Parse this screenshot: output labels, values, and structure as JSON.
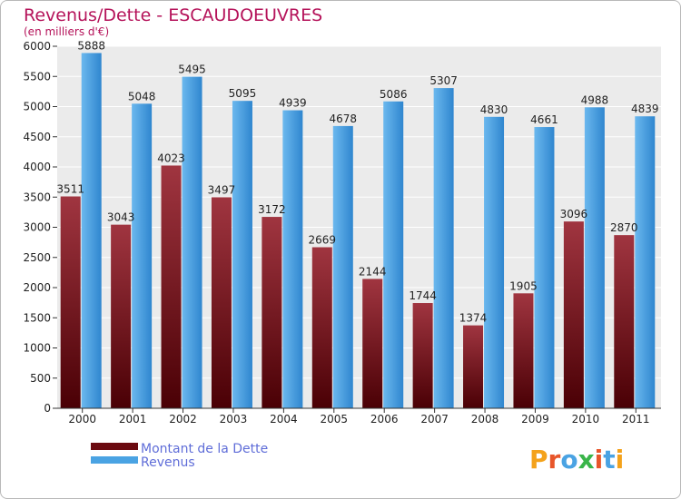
{
  "chart_data": {
    "type": "bar",
    "title": "Revenus/Dette - ESCAUDOEUVRES",
    "subtitle": "(en milliers d'€)",
    "categories": [
      "2000",
      "2001",
      "2002",
      "2003",
      "2004",
      "2005",
      "2006",
      "2007",
      "2008",
      "2009",
      "2010",
      "2011"
    ],
    "series": [
      {
        "name": "Montant de la Dette",
        "color": "#7a1a22",
        "values": [
          3511,
          3043,
          4023,
          3497,
          3172,
          2669,
          2144,
          1744,
          1374,
          1905,
          3096,
          2870
        ]
      },
      {
        "name": "Revenus",
        "color": "#4aa3e3",
        "values": [
          5888,
          5048,
          5495,
          5095,
          4939,
          4678,
          5086,
          5307,
          4830,
          4661,
          4988,
          4839
        ]
      }
    ],
    "ylim": [
      0,
      6000
    ],
    "yticks": [
      0,
      500,
      1000,
      1500,
      2000,
      2500,
      3000,
      3500,
      4000,
      4500,
      5000,
      5500,
      6000
    ],
    "grid": true,
    "legend_position": "bottom-left"
  },
  "logo": {
    "text": "Proxiti"
  }
}
